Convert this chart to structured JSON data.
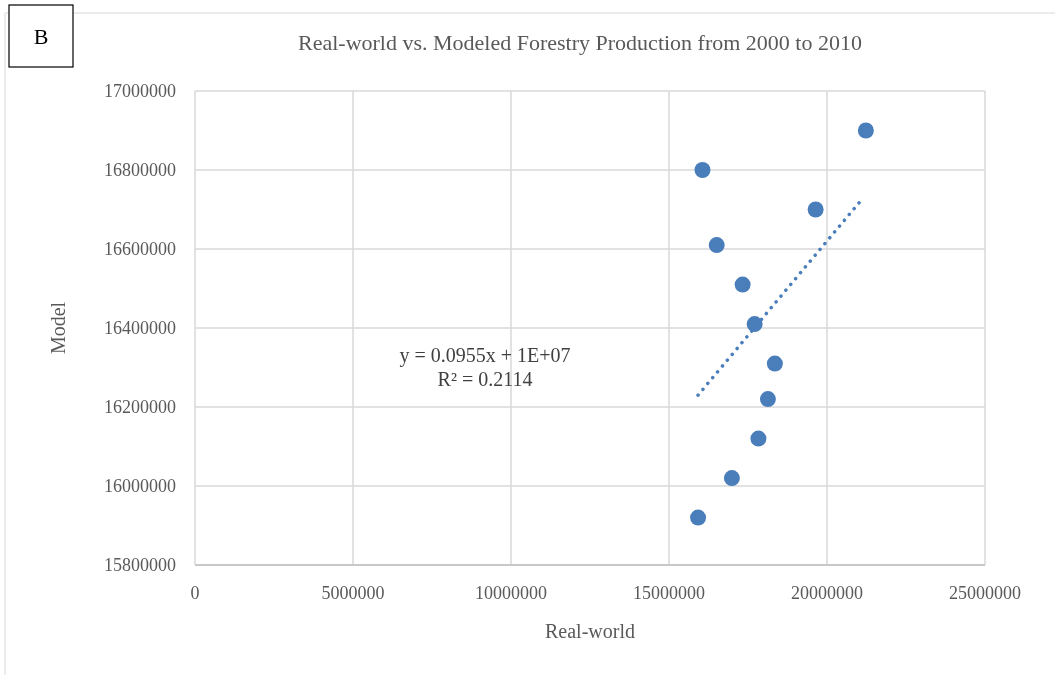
{
  "chart_data": {
    "type": "scatter",
    "title": "Real-world vs. Modeled Forestry Production from 2000 to 2010",
    "xlabel": "Real-world",
    "ylabel": "Model",
    "annotations": [
      "B",
      "y = 0.0955x + 1E+07",
      "R² = 0.2114"
    ],
    "series": [
      {
        "color": "#4a7ebb",
        "marker": "circle",
        "x": [
          21230000,
          16060000,
          19640000,
          16510000,
          17330000,
          17710000,
          18350000,
          18130000,
          17830000,
          16990000,
          15920000
        ],
        "values": [
          16900000,
          16800000,
          16700000,
          16610000,
          16510000,
          16410000,
          16310000,
          16220000,
          16120000,
          16020000,
          15920000
        ]
      },
      {
        "type": "line",
        "color": "#4a7ebb",
        "line_style": "dotted",
        "marker": "none",
        "x": [
          15920000,
          21150000
        ],
        "values": [
          16230000,
          16730000
        ]
      }
    ],
    "xlim": [
      0,
      25000000
    ],
    "xticks": [
      0,
      5000000,
      10000000,
      15000000,
      20000000,
      25000000
    ],
    "ylim": [
      15800000,
      17000000
    ],
    "yticks": [
      15800000,
      16000000,
      16200000,
      16400000,
      16600000,
      16800000,
      17000000
    ],
    "grid": true
  }
}
